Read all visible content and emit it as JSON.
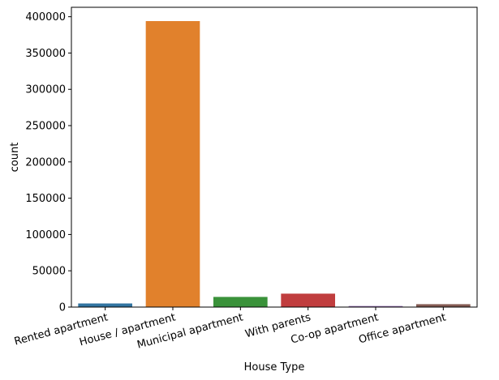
{
  "chart_data": {
    "type": "bar",
    "title": "",
    "xlabel": "House Type",
    "ylabel": "count",
    "categories": [
      "Rented apartment",
      "House / apartment",
      "Municipal apartment",
      "With parents",
      "Co-op apartment",
      "Office apartment"
    ],
    "values": [
      5000,
      394000,
      14000,
      18500,
      1500,
      4000
    ],
    "colors": [
      "#3274a1",
      "#e1812c",
      "#3a923a",
      "#c03d3e",
      "#9372b2",
      "#845b53"
    ],
    "ylim": [
      0,
      413000
    ],
    "yticks": [
      0,
      50000,
      100000,
      150000,
      200000,
      250000,
      300000,
      350000,
      400000
    ],
    "ytick_labels": [
      "0",
      "50000",
      "100000",
      "150000",
      "200000",
      "250000",
      "300000",
      "350000",
      "400000"
    ],
    "grid": false,
    "legend": "none"
  }
}
